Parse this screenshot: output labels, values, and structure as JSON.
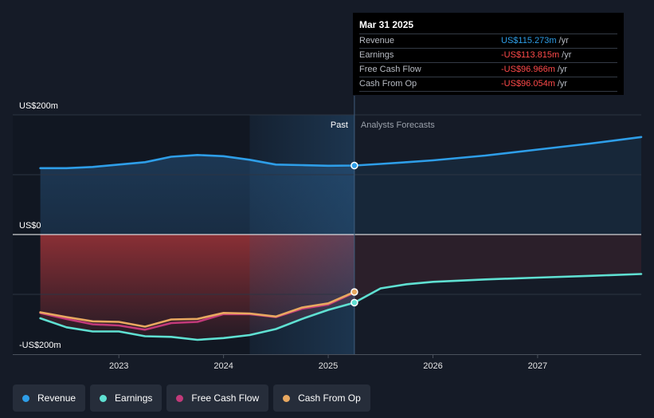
{
  "tooltip": {
    "date": "Mar 31 2025",
    "rows": [
      {
        "name": "Revenue",
        "value": "US$115.273m",
        "unit": "/yr",
        "color": "#2e9ee8"
      },
      {
        "name": "Earnings",
        "value": "-US$113.815m",
        "unit": "/yr",
        "color": "#ff4a4a"
      },
      {
        "name": "Free Cash Flow",
        "value": "-US$96.966m",
        "unit": "/yr",
        "color": "#ff4a4a"
      },
      {
        "name": "Cash From Op",
        "value": "-US$96.054m",
        "unit": "/yr",
        "color": "#ff4a4a"
      }
    ]
  },
  "labels": {
    "past": "Past",
    "forecast": "Analysts Forecasts"
  },
  "legend": [
    {
      "label": "Revenue",
      "color": "#2e9ee8"
    },
    {
      "label": "Earnings",
      "color": "#5fe0d2"
    },
    {
      "label": "Free Cash Flow",
      "color": "#c23a7a"
    },
    {
      "label": "Cash From Op",
      "color": "#e8a860"
    }
  ],
  "chart_data": {
    "type": "line",
    "x_ticks": [
      "2023",
      "2024",
      "2025",
      "2026",
      "2027"
    ],
    "y_tick_labels": [
      "US$200m",
      "US$0",
      "-US$200m"
    ],
    "ylim": [
      -200,
      200
    ],
    "xlim": [
      2022.23,
      2027.99
    ],
    "past_until": 2025.25,
    "highlight_start": 2024.25,
    "colors": {
      "past_pos": "#1e3b59",
      "past_neg": "#8a2f35",
      "forecast_neg": "#2b1f2a"
    },
    "series": [
      {
        "name": "Revenue",
        "color": "#2e9ee8",
        "points": [
          [
            2022.25,
            111
          ],
          [
            2022.5,
            111
          ],
          [
            2022.75,
            113
          ],
          [
            2023.0,
            117
          ],
          [
            2023.25,
            121
          ],
          [
            2023.5,
            130
          ],
          [
            2023.75,
            133
          ],
          [
            2024.0,
            131
          ],
          [
            2024.25,
            125
          ],
          [
            2024.5,
            117
          ],
          [
            2024.75,
            116
          ],
          [
            2025.0,
            115
          ],
          [
            2025.25,
            115.3
          ],
          [
            2025.5,
            118
          ],
          [
            2025.75,
            121
          ],
          [
            2026.0,
            124
          ],
          [
            2026.5,
            132
          ],
          [
            2027.0,
            142
          ],
          [
            2027.5,
            152
          ],
          [
            2027.99,
            163
          ]
        ]
      },
      {
        "name": "Earnings",
        "color": "#5fe0d2",
        "points": [
          [
            2022.25,
            -140
          ],
          [
            2022.5,
            -155
          ],
          [
            2022.75,
            -162
          ],
          [
            2023.0,
            -162
          ],
          [
            2023.25,
            -170
          ],
          [
            2023.5,
            -171
          ],
          [
            2023.75,
            -176
          ],
          [
            2024.0,
            -173
          ],
          [
            2024.25,
            -168
          ],
          [
            2024.5,
            -158
          ],
          [
            2024.75,
            -141
          ],
          [
            2025.0,
            -126
          ],
          [
            2025.25,
            -113.8
          ],
          [
            2025.5,
            -90
          ],
          [
            2025.75,
            -83
          ],
          [
            2026.0,
            -79
          ],
          [
            2026.5,
            -75
          ],
          [
            2027.0,
            -72
          ],
          [
            2027.5,
            -69
          ],
          [
            2027.99,
            -66
          ]
        ]
      },
      {
        "name": "Free Cash Flow",
        "color": "#c23a7a",
        "points": [
          [
            2022.25,
            -131
          ],
          [
            2022.5,
            -141
          ],
          [
            2022.75,
            -150
          ],
          [
            2023.0,
            -152
          ],
          [
            2023.25,
            -159
          ],
          [
            2023.5,
            -148
          ],
          [
            2023.75,
            -146
          ],
          [
            2024.0,
            -133
          ],
          [
            2024.25,
            -133
          ],
          [
            2024.5,
            -138
          ],
          [
            2024.75,
            -124
          ],
          [
            2025.0,
            -117
          ],
          [
            2025.25,
            -97
          ]
        ]
      },
      {
        "name": "Cash From Op",
        "color": "#e8a860",
        "points": [
          [
            2022.25,
            -130
          ],
          [
            2022.5,
            -138
          ],
          [
            2022.75,
            -145
          ],
          [
            2023.0,
            -146
          ],
          [
            2023.25,
            -154
          ],
          [
            2023.5,
            -142
          ],
          [
            2023.75,
            -141
          ],
          [
            2024.0,
            -131
          ],
          [
            2024.25,
            -132
          ],
          [
            2024.5,
            -137
          ],
          [
            2024.75,
            -122
          ],
          [
            2025.0,
            -115
          ],
          [
            2025.25,
            -96
          ]
        ]
      }
    ],
    "markers": [
      {
        "series": "Revenue",
        "x": 2025.25,
        "y": 115.3
      },
      {
        "series": "Earnings",
        "x": 2025.25,
        "y": -113.8
      },
      {
        "series": "Cash From Op",
        "x": 2025.25,
        "y": -96
      }
    ]
  }
}
